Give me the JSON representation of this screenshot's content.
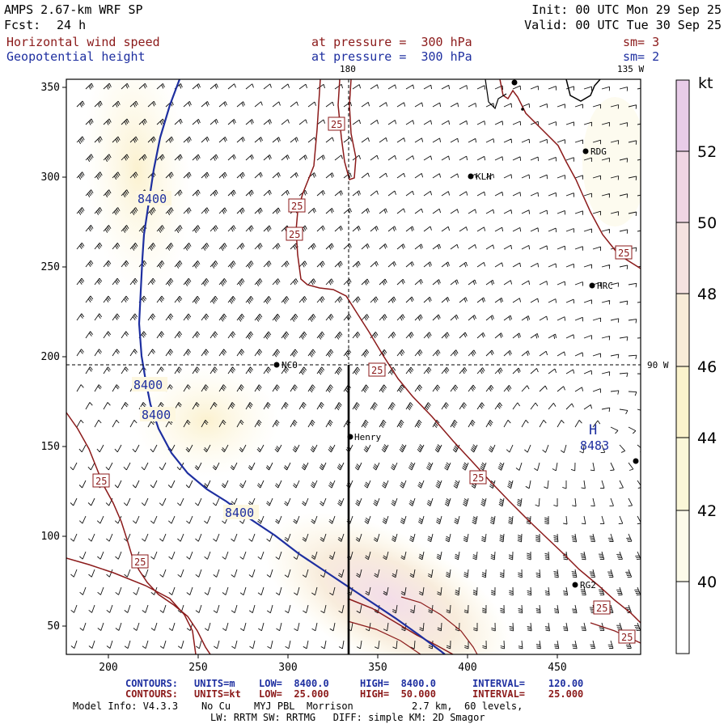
{
  "header": {
    "model": "AMPS 2.67-km WRF SP",
    "init": "Init: 00 UTC Mon 29 Sep 25",
    "fcst_label": "Fcst:",
    "fcst_value": "24 h",
    "valid": "Valid: 00 UTC Tue 30 Sep 25",
    "field1": "Horizontal wind speed",
    "field1_level": "at pressure =  300 hPa",
    "field1_sm": "sm= 3",
    "field2": "Geopotential height",
    "field2_level": "at pressure =  300 hPa",
    "field2_sm": "sm= 2"
  },
  "map": {
    "lon_labels": {
      "top": "180",
      "top_right": "135 W",
      "right": "90 W"
    },
    "x_ticks": [
      "200",
      "250",
      "300",
      "350",
      "400",
      "450"
    ],
    "y_ticks": [
      "350",
      "300",
      "250",
      "200",
      "150",
      "100",
      "50"
    ],
    "stations": [
      {
        "name": "LV",
        "label": ""
      },
      {
        "name": "RDG",
        "label": "RDG"
      },
      {
        "name": "KLN",
        "label": "KLN"
      },
      {
        "name": "HRC",
        "label": "HRC"
      },
      {
        "name": "NCO",
        "label": "NCO"
      },
      {
        "name": "Henry",
        "label": "Henry"
      },
      {
        "name": "RG2",
        "label": "RG2"
      },
      {
        "name": "E",
        "label": ""
      }
    ],
    "height_labels": [
      "8400",
      "8400",
      "8400",
      "8400"
    ],
    "high_center": {
      "letter": "H",
      "value": "8483"
    },
    "speed_labels": [
      "25",
      "25",
      "25",
      "25",
      "25",
      "25",
      "25",
      "25",
      "25",
      "25"
    ],
    "colors": {
      "height_line": "#1e2fa0",
      "speed_line": "#8b1a1a",
      "coast": "#000000"
    }
  },
  "colorbar": {
    "unit": "kt",
    "labels": [
      "52",
      "50",
      "48",
      "46",
      "44",
      "42",
      "40"
    ],
    "colors": [
      "#e8cce8",
      "#f0d6e4",
      "#f5e2e0",
      "#f8ecd8",
      "#fbf3cc",
      "#fbf7d8",
      "#fdfbea",
      "#ffffff"
    ]
  },
  "footer": {
    "c1_label": "CONTOURS:",
    "c1_units": "UNITS=m",
    "c1_low": "LOW=  8400.0",
    "c1_high": "HIGH=  8400.0",
    "c1_interval": "INTERVAL=    120.00",
    "c2_label": "CONTOURS:",
    "c2_units": "UNITS=kt",
    "c2_low": "LOW=  25.000",
    "c2_high": "HIGH=  50.000",
    "c2_interval": "INTERVAL=    25.000",
    "info1": "Model Info: V4.3.3    No Cu    MYJ PBL  Morrison          2.7 km,  60 levels,",
    "info2": "LW: RRTM SW: RRTMG   DIFF: simple KM: 2D Smagor"
  }
}
